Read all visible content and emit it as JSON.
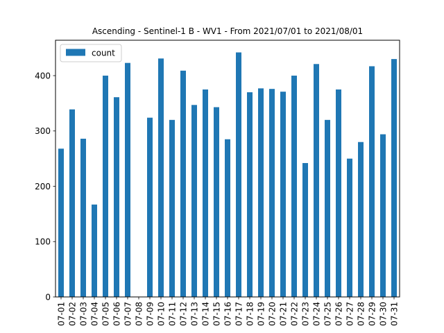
{
  "chart_data": {
    "type": "bar",
    "title": "Ascending - Sentinel-1 B - WV1 - From 2021/07/01 to 2021/08/01",
    "xlabel": "",
    "ylabel": "",
    "categories": [
      "07-01",
      "07-02",
      "07-03",
      "07-04",
      "07-05",
      "07-06",
      "07-07",
      "07-08",
      "07-09",
      "07-10",
      "07-11",
      "07-12",
      "07-13",
      "07-14",
      "07-15",
      "07-16",
      "07-17",
      "07-18",
      "07-19",
      "07-20",
      "07-21",
      "07-22",
      "07-23",
      "07-24",
      "07-25",
      "07-26",
      "07-27",
      "07-28",
      "07-29",
      "07-30",
      "07-31"
    ],
    "series": [
      {
        "name": "count",
        "color": "#1f77b4",
        "values": [
          268,
          339,
          286,
          167,
          400,
          361,
          423,
          0,
          324,
          431,
          320,
          409,
          347,
          375,
          343,
          285,
          442,
          370,
          377,
          376,
          371,
          400,
          242,
          421,
          320,
          375,
          250,
          280,
          417,
          294,
          430
        ]
      }
    ],
    "ylim": [
      0,
      464
    ],
    "yticks": [
      0,
      100,
      200,
      300,
      400
    ],
    "grid": false,
    "legend": {
      "placement": "top-left",
      "entries": [
        "count"
      ]
    }
  }
}
